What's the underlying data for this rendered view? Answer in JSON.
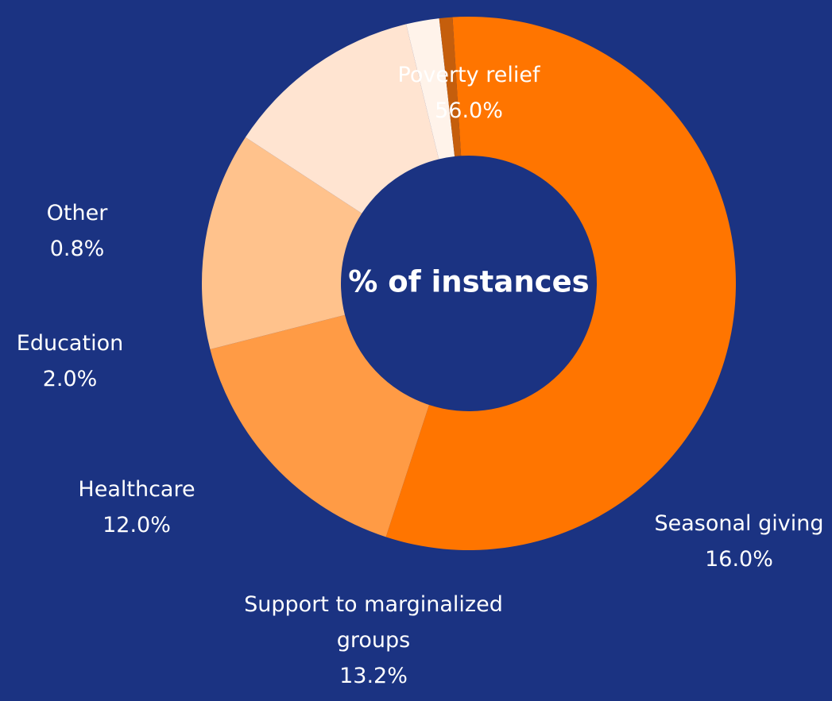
{
  "chart_data": {
    "type": "pie",
    "title": "",
    "center_label": "% of instances",
    "slices": [
      {
        "label": "Poverty relief",
        "value_label": "56.0%",
        "value": 56.0,
        "color": "#ff7500"
      },
      {
        "label": "Seasonal giving",
        "value_label": "16.0%",
        "value": 16.0,
        "color": "#ff9b45"
      },
      {
        "label": "Support to marginalized groups",
        "value_label": "13.2%",
        "value": 13.2,
        "color": "#ffc28c"
      },
      {
        "label": "Healthcare",
        "value_label": "12.0%",
        "value": 12.0,
        "color": "#ffe4d1"
      },
      {
        "label": "Education",
        "value_label": "2.0%",
        "value": 2.0,
        "color": "#fff3ea"
      },
      {
        "label": "Other",
        "value_label": "0.8%",
        "value": 0.8,
        "color": "#c55e0c"
      }
    ]
  }
}
